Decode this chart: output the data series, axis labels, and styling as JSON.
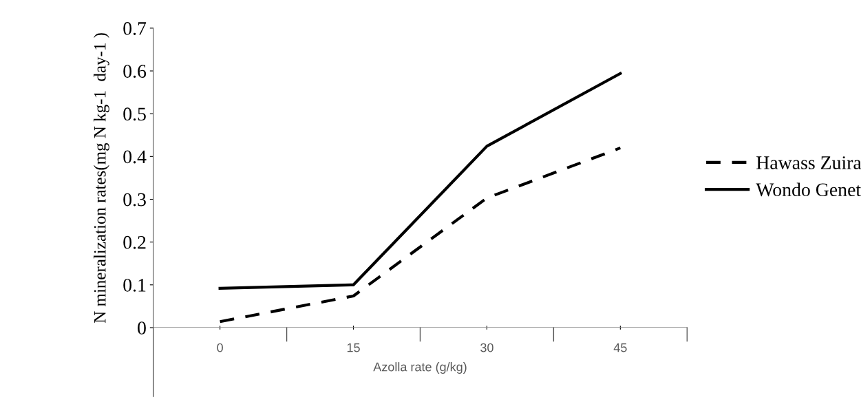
{
  "chart_data": {
    "type": "line",
    "xlabel": "Azolla rate (g/kg)",
    "ylabel": "N mineralization rates(mg N kg-1  day-1 )",
    "categories": [
      "0",
      "15",
      "30",
      "45"
    ],
    "series": [
      {
        "name": "Hawass Zuira",
        "color": "#000000",
        "line_style": "dashed",
        "values": [
          0.014,
          0.074,
          0.303,
          0.42
        ]
      },
      {
        "name": "Wondo Genet",
        "color": "#000000",
        "line_style": "solid",
        "values": [
          0.092,
          0.1,
          0.424,
          0.594
        ]
      }
    ],
    "ylim": [
      0,
      0.7
    ],
    "yticks": [
      0,
      0.1,
      0.2,
      0.3,
      0.4,
      0.5,
      0.6,
      0.7
    ],
    "grid": false,
    "legend": "right",
    "marker": "none"
  }
}
